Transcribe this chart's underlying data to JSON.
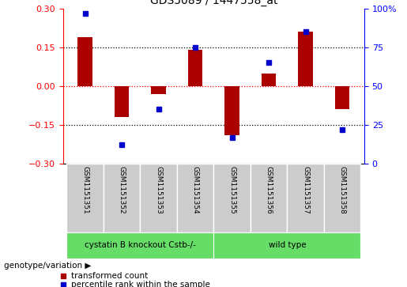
{
  "title": "GDS5089 / 1447558_at",
  "samples": [
    "GSM1151351",
    "GSM1151352",
    "GSM1151353",
    "GSM1151354",
    "GSM1151355",
    "GSM1151356",
    "GSM1151357",
    "GSM1151358"
  ],
  "transformed_count": [
    0.19,
    -0.12,
    -0.03,
    0.14,
    -0.19,
    0.05,
    0.21,
    -0.09
  ],
  "percentile_rank": [
    97,
    12,
    35,
    75,
    17,
    65,
    85,
    22
  ],
  "bar_color": "#AA0000",
  "dot_color": "#0000CC",
  "left_ylim": [
    -0.3,
    0.3
  ],
  "right_ylim": [
    0,
    100
  ],
  "left_yticks": [
    -0.3,
    -0.15,
    0,
    0.15,
    0.3
  ],
  "right_yticks": [
    0,
    25,
    50,
    75,
    100
  ],
  "hlines": [
    0.15,
    0,
    -0.15
  ],
  "hline_styles": [
    "dotted",
    "dotted",
    "dotted"
  ],
  "hline_colors": [
    "black",
    "red",
    "black"
  ],
  "group1_label": "cystatin B knockout Cstb-/-",
  "group2_label": "wild type",
  "group1_indices": [
    0,
    1,
    2,
    3
  ],
  "group2_indices": [
    4,
    5,
    6,
    7
  ],
  "genotype_label": "genotype/variation",
  "legend1_label": "transformed count",
  "legend2_label": "percentile rank within the sample",
  "group_color": "#66DD66",
  "bg_color": "#CCCCCC",
  "bar_width": 0.4
}
